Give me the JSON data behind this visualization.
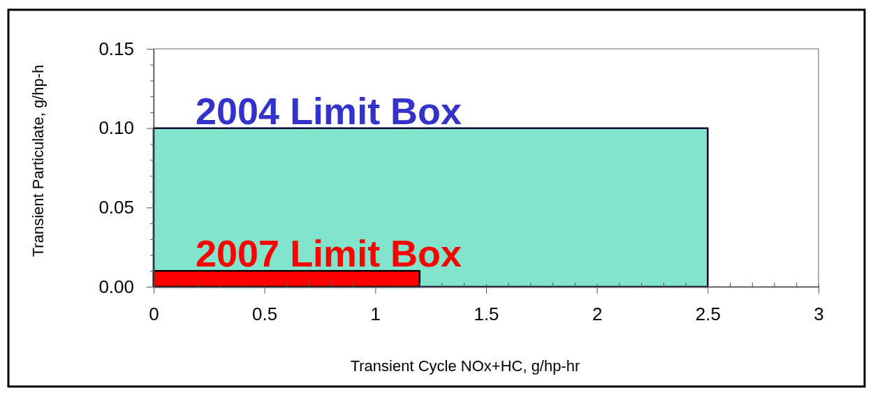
{
  "chart_data": {
    "type": "area",
    "xlabel": "Transient Cycle NOx+HC, g/hp-hr",
    "ylabel": "Transient Particulate, g/hp-h",
    "xlim": [
      0,
      3
    ],
    "ylim": [
      0,
      0.15
    ],
    "xticks": [
      0,
      {
        "value": 0.1,
        "label": null
      },
      {
        "value": 0.2,
        "label": null
      },
      {
        "value": 0.3,
        "label": null
      },
      {
        "value": 0.4,
        "label": null
      },
      0.5,
      {
        "value": 0.6,
        "label": null
      },
      {
        "value": 0.7,
        "label": null
      },
      {
        "value": 0.8,
        "label": null
      },
      {
        "value": 0.9,
        "label": null
      },
      1,
      {
        "value": 1.1,
        "label": null
      },
      {
        "value": 1.2,
        "label": null
      },
      {
        "value": 1.3,
        "label": null
      },
      {
        "value": 1.4,
        "label": null
      },
      1.5,
      {
        "value": 1.6,
        "label": null
      },
      {
        "value": 1.7,
        "label": null
      },
      {
        "value": 1.8,
        "label": null
      },
      {
        "value": 1.9,
        "label": null
      },
      2,
      {
        "value": 2.1,
        "label": null
      },
      {
        "value": 2.2,
        "label": null
      },
      {
        "value": 2.3,
        "label": null
      },
      {
        "value": 2.4,
        "label": null
      },
      2.5,
      {
        "value": 2.6,
        "label": null
      },
      {
        "value": 2.7,
        "label": null
      },
      {
        "value": 2.8,
        "label": null
      },
      {
        "value": 2.9,
        "label": null
      },
      3
    ],
    "yticks": [
      {
        "value": 0,
        "label": "0.00"
      },
      {
        "value": 0.01,
        "label": null
      },
      {
        "value": 0.02,
        "label": null
      },
      {
        "value": 0.03,
        "label": null
      },
      {
        "value": 0.04,
        "label": null
      },
      {
        "value": 0.05,
        "label": "0.05"
      },
      {
        "value": 0.06,
        "label": null
      },
      {
        "value": 0.07,
        "label": null
      },
      {
        "value": 0.08,
        "label": null
      },
      {
        "value": 0.09,
        "label": null
      },
      {
        "value": 0.1,
        "label": "0.10"
      },
      {
        "value": 0.11,
        "label": null
      },
      {
        "value": 0.12,
        "label": null
      },
      {
        "value": 0.13,
        "label": null
      },
      {
        "value": 0.14,
        "label": null
      },
      {
        "value": 0.15,
        "label": "0.15"
      }
    ],
    "series": [
      {
        "name": "2004 Limit Box",
        "color": "#80e5cc",
        "x": [
          0,
          2.5
        ],
        "values": [
          0.1,
          0.1
        ]
      },
      {
        "name": "2007 Limit Box",
        "color": "#ff0000",
        "x": [
          0,
          1.2
        ],
        "values": [
          0.01,
          0.01
        ]
      }
    ]
  }
}
